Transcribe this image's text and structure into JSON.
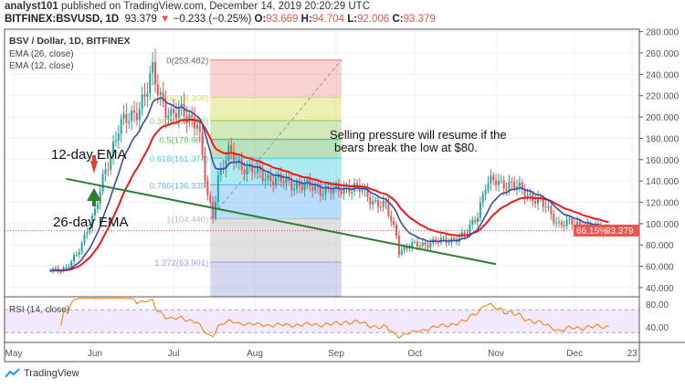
{
  "header": {
    "author": "analyst101",
    "published": "published on TradingView.com, December 14, 2019 20:20:29 UTC",
    "symbol": "BITFINEX:BSVUSD, 1D",
    "last": "93.379",
    "change": "−0.233 (−0.25%)",
    "o_label": "O:",
    "o": "93.669",
    "h_label": "H:",
    "h": "94.704",
    "l_label": "L:",
    "l": "92.006",
    "c_label": "C:",
    "c": "93.379"
  },
  "legend": {
    "title": "BSV / Dollar, 1D, BITFINEX",
    "ema26": "EMA (26, close)",
    "ema12": "EMA (12, close)",
    "rsi": "RSI (14, close)"
  },
  "annotations": {
    "ema12": "12-day EMA",
    "ema26": "26-day EMA",
    "note1": "Selling pressure will resume if the",
    "note2": "bears break the low at $80."
  },
  "price_tag": {
    "pct": "66.15%",
    "price": "93.379"
  },
  "logo": "TradingView",
  "colors": {
    "up": "#26a69a",
    "down": "#ef5350",
    "ema12": "#3a4ba8",
    "ema26": "#f01818",
    "trend": "#2e7d32"
  },
  "chart_data": {
    "type": "candlestick",
    "title": "BSV / Dollar, 1D, BITFINEX",
    "ylim": [
      30,
      285
    ],
    "y_ticks": [
      "40.000",
      "60.000",
      "80.000",
      "100.000",
      "120.000",
      "140.000",
      "160.000",
      "180.000",
      "200.000",
      "220.000",
      "240.000",
      "260.000",
      "280.000"
    ],
    "x_ticks": [
      "May",
      "Jun",
      "Jul",
      "Aug",
      "Sep",
      "Oct",
      "Nov",
      "Dec",
      "23"
    ],
    "rsi_ticks": [
      "80.00",
      "40.00"
    ],
    "close_keypoints": [
      [
        14,
        57
      ],
      [
        20,
        58
      ],
      [
        24,
        70
      ],
      [
        28,
        95
      ],
      [
        31,
        110
      ],
      [
        35,
        150
      ],
      [
        40,
        190
      ],
      [
        45,
        200
      ],
      [
        50,
        220
      ],
      [
        53,
        240
      ],
      [
        56,
        220
      ],
      [
        60,
        200
      ],
      [
        65,
        205
      ],
      [
        70,
        195
      ],
      [
        72,
        160
      ],
      [
        74,
        125
      ],
      [
        76,
        108
      ],
      [
        78,
        145
      ],
      [
        82,
        165
      ],
      [
        87,
        155
      ],
      [
        92,
        148
      ],
      [
        101,
        140
      ],
      [
        111,
        135
      ],
      [
        123,
        130
      ],
      [
        127,
        135
      ],
      [
        132,
        132
      ],
      [
        137,
        122
      ],
      [
        142,
        115
      ],
      [
        146,
        90
      ],
      [
        147,
        75
      ],
      [
        153,
        80
      ],
      [
        162,
        83
      ],
      [
        172,
        88
      ],
      [
        177,
        110
      ],
      [
        180,
        135
      ],
      [
        184,
        140
      ],
      [
        191,
        135
      ],
      [
        198,
        125
      ],
      [
        203,
        115
      ],
      [
        208,
        100
      ],
      [
        214,
        100
      ],
      [
        221,
        96
      ],
      [
        227,
        93.379
      ]
    ],
    "fibonacci": [
      {
        "level": "0",
        "price": "253.482"
      },
      {
        "level": "0.236",
        "price": "218.308"
      },
      {
        "level": "0.382",
        "price": "196.548"
      },
      {
        "level": "0.5",
        "price": "178.961"
      },
      {
        "level": "0.618",
        "price": "161.374"
      },
      {
        "level": "0.786",
        "price": "136.335"
      },
      {
        "level": "1",
        "price": "104.440"
      },
      {
        "level": "1.272",
        "price": "63.901"
      }
    ],
    "fib_colors": [
      "#ef9a9a",
      "#d4e157",
      "#9ccc65",
      "#66bb6a",
      "#4dd0e1",
      "#64b5f6",
      "#bdbdbd",
      "#9fa8da"
    ],
    "trendline": [
      [
        20,
        142
      ],
      [
        184,
        62
      ]
    ]
  }
}
